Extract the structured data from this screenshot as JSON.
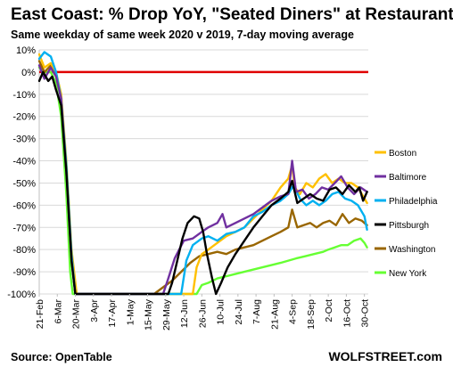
{
  "chart_data": {
    "type": "line",
    "title": "East Coast: % Drop YoY, \"Seated Diners\" at Restaurants",
    "subtitle": "Same weekday of same week 2020 v 2019, 7-day moving average",
    "xlabel": "",
    "ylabel": "",
    "x_ticks": [
      "21-Feb",
      "6-Mar",
      "20-Mar",
      "3-Apr",
      "17-Apr",
      "1-May",
      "15-May",
      "29-May",
      "12-Jun",
      "26-Jun",
      "10-Jul",
      "24-Jul",
      "7-Aug",
      "21-Aug",
      "4-Sep",
      "18-Sep",
      "2-Oct",
      "16-Oct",
      "30-Oct"
    ],
    "x_range": [
      "2020-02-21",
      "2020-11-02"
    ],
    "ylim": [
      -100,
      10
    ],
    "y_ticks": [
      10,
      0,
      -10,
      -20,
      -30,
      -40,
      -50,
      -60,
      -70,
      -80,
      -90,
      -100
    ],
    "y_tick_format": "percent",
    "grid": true,
    "zero_line_color": "#e00000",
    "legend_position": "right",
    "series": [
      {
        "name": "Boston",
        "color": "#ffc000",
        "points": [
          [
            "2020-02-21",
            8
          ],
          [
            "2020-02-25",
            2
          ],
          [
            "2020-03-01",
            4
          ],
          [
            "2020-03-05",
            0
          ],
          [
            "2020-03-09",
            -10
          ],
          [
            "2020-03-13",
            -40
          ],
          [
            "2020-03-17",
            -80
          ],
          [
            "2020-03-21",
            -100
          ],
          [
            "2020-06-19",
            -100
          ],
          [
            "2020-06-22",
            -88
          ],
          [
            "2020-06-26",
            -82
          ],
          [
            "2020-07-01",
            -80
          ],
          [
            "2020-07-08",
            -77
          ],
          [
            "2020-07-15",
            -74
          ],
          [
            "2020-07-22",
            -72
          ],
          [
            "2020-07-29",
            -70
          ],
          [
            "2020-08-05",
            -66
          ],
          [
            "2020-08-12",
            -62
          ],
          [
            "2020-08-19",
            -58
          ],
          [
            "2020-08-26",
            -52
          ],
          [
            "2020-09-01",
            -48
          ],
          [
            "2020-09-04",
            -42
          ],
          [
            "2020-09-06",
            -52
          ],
          [
            "2020-09-10",
            -55
          ],
          [
            "2020-09-15",
            -50
          ],
          [
            "2020-09-20",
            -52
          ],
          [
            "2020-09-25",
            -48
          ],
          [
            "2020-09-30",
            -46
          ],
          [
            "2020-10-05",
            -50
          ],
          [
            "2020-10-10",
            -48
          ],
          [
            "2020-10-15",
            -50
          ],
          [
            "2020-10-20",
            -50
          ],
          [
            "2020-10-25",
            -52
          ],
          [
            "2020-10-30",
            -57
          ],
          [
            "2020-11-01",
            -59
          ]
        ]
      },
      {
        "name": "Baltimore",
        "color": "#7030a0",
        "points": [
          [
            "2020-02-21",
            3
          ],
          [
            "2020-02-25",
            -3
          ],
          [
            "2020-03-01",
            2
          ],
          [
            "2020-03-05",
            -2
          ],
          [
            "2020-03-09",
            -12
          ],
          [
            "2020-03-13",
            -45
          ],
          [
            "2020-03-17",
            -85
          ],
          [
            "2020-03-20",
            -100
          ],
          [
            "2020-05-27",
            -100
          ],
          [
            "2020-05-31",
            -93
          ],
          [
            "2020-06-05",
            -84
          ],
          [
            "2020-06-12",
            -76
          ],
          [
            "2020-06-19",
            -75
          ],
          [
            "2020-06-26",
            -72
          ],
          [
            "2020-07-01",
            -70
          ],
          [
            "2020-07-08",
            -68
          ],
          [
            "2020-07-12",
            -64
          ],
          [
            "2020-07-15",
            -70
          ],
          [
            "2020-07-22",
            -68
          ],
          [
            "2020-07-29",
            -66
          ],
          [
            "2020-08-05",
            -64
          ],
          [
            "2020-08-12",
            -61
          ],
          [
            "2020-08-19",
            -58
          ],
          [
            "2020-08-26",
            -56
          ],
          [
            "2020-09-01",
            -55
          ],
          [
            "2020-09-04",
            -40
          ],
          [
            "2020-09-07",
            -54
          ],
          [
            "2020-09-12",
            -53
          ],
          [
            "2020-09-17",
            -57
          ],
          [
            "2020-09-22",
            -55
          ],
          [
            "2020-09-27",
            -52
          ],
          [
            "2020-10-02",
            -53
          ],
          [
            "2020-10-07",
            -50
          ],
          [
            "2020-10-12",
            -47
          ],
          [
            "2020-10-17",
            -52
          ],
          [
            "2020-10-22",
            -55
          ],
          [
            "2020-10-27",
            -52
          ],
          [
            "2020-11-01",
            -54
          ]
        ]
      },
      {
        "name": "Philadelphia",
        "color": "#00b0f0",
        "points": [
          [
            "2020-02-21",
            6
          ],
          [
            "2020-02-25",
            9
          ],
          [
            "2020-03-01",
            7
          ],
          [
            "2020-03-05",
            0
          ],
          [
            "2020-03-09",
            -12
          ],
          [
            "2020-03-13",
            -42
          ],
          [
            "2020-03-17",
            -82
          ],
          [
            "2020-03-20",
            -100
          ],
          [
            "2020-06-10",
            -100
          ],
          [
            "2020-06-14",
            -85
          ],
          [
            "2020-06-19",
            -78
          ],
          [
            "2020-06-26",
            -75
          ],
          [
            "2020-07-01",
            -74
          ],
          [
            "2020-07-08",
            -76
          ],
          [
            "2020-07-15",
            -73
          ],
          [
            "2020-07-22",
            -72
          ],
          [
            "2020-07-29",
            -70
          ],
          [
            "2020-08-05",
            -65
          ],
          [
            "2020-08-12",
            -63
          ],
          [
            "2020-08-19",
            -60
          ],
          [
            "2020-08-26",
            -58
          ],
          [
            "2020-09-01",
            -55
          ],
          [
            "2020-09-05",
            -51
          ],
          [
            "2020-09-10",
            -57
          ],
          [
            "2020-09-15",
            -60
          ],
          [
            "2020-09-20",
            -58
          ],
          [
            "2020-09-25",
            -60
          ],
          [
            "2020-09-30",
            -58
          ],
          [
            "2020-10-05",
            -55
          ],
          [
            "2020-10-10",
            -54
          ],
          [
            "2020-10-15",
            -57
          ],
          [
            "2020-10-20",
            -58
          ],
          [
            "2020-10-25",
            -60
          ],
          [
            "2020-10-30",
            -65
          ],
          [
            "2020-11-01",
            -71
          ]
        ]
      },
      {
        "name": "Pittsburgh",
        "color": "#000000",
        "points": [
          [
            "2020-02-21",
            -4
          ],
          [
            "2020-02-24",
            0
          ],
          [
            "2020-02-28",
            -4
          ],
          [
            "2020-03-02",
            -2
          ],
          [
            "2020-03-05",
            -8
          ],
          [
            "2020-03-09",
            -15
          ],
          [
            "2020-03-13",
            -45
          ],
          [
            "2020-03-17",
            -85
          ],
          [
            "2020-03-20",
            -100
          ],
          [
            "2020-05-31",
            -100
          ],
          [
            "2020-06-03",
            -95
          ],
          [
            "2020-06-07",
            -85
          ],
          [
            "2020-06-11",
            -75
          ],
          [
            "2020-06-15",
            -68
          ],
          [
            "2020-06-20",
            -65
          ],
          [
            "2020-06-24",
            -66
          ],
          [
            "2020-06-27",
            -72
          ],
          [
            "2020-06-30",
            -82
          ],
          [
            "2020-07-04",
            -93
          ],
          [
            "2020-07-07",
            -100
          ],
          [
            "2020-07-11",
            -95
          ],
          [
            "2020-07-16",
            -88
          ],
          [
            "2020-07-22",
            -82
          ],
          [
            "2020-07-29",
            -76
          ],
          [
            "2020-08-05",
            -70
          ],
          [
            "2020-08-12",
            -65
          ],
          [
            "2020-08-19",
            -60
          ],
          [
            "2020-08-26",
            -57
          ],
          [
            "2020-09-01",
            -54
          ],
          [
            "2020-09-04",
            -49
          ],
          [
            "2020-09-08",
            -59
          ],
          [
            "2020-09-13",
            -57
          ],
          [
            "2020-09-18",
            -55
          ],
          [
            "2020-09-23",
            -57
          ],
          [
            "2020-09-28",
            -58
          ],
          [
            "2020-10-03",
            -53
          ],
          [
            "2020-10-08",
            -52
          ],
          [
            "2020-10-13",
            -55
          ],
          [
            "2020-10-18",
            -51
          ],
          [
            "2020-10-23",
            -54
          ],
          [
            "2020-10-26",
            -52
          ],
          [
            "2020-10-29",
            -58
          ],
          [
            "2020-11-01",
            -54
          ]
        ]
      },
      {
        "name": "Washington",
        "color": "#996600",
        "points": [
          [
            "2020-02-21",
            5
          ],
          [
            "2020-02-25",
            0
          ],
          [
            "2020-03-01",
            3
          ],
          [
            "2020-03-05",
            -1
          ],
          [
            "2020-03-09",
            -12
          ],
          [
            "2020-03-13",
            -43
          ],
          [
            "2020-03-17",
            -83
          ],
          [
            "2020-03-20",
            -100
          ],
          [
            "2020-05-20",
            -100
          ],
          [
            "2020-05-27",
            -97
          ],
          [
            "2020-06-03",
            -94
          ],
          [
            "2020-06-10",
            -90
          ],
          [
            "2020-06-17",
            -86
          ],
          [
            "2020-06-24",
            -83
          ],
          [
            "2020-07-01",
            -82
          ],
          [
            "2020-07-08",
            -81
          ],
          [
            "2020-07-15",
            -82
          ],
          [
            "2020-07-22",
            -80
          ],
          [
            "2020-07-29",
            -79
          ],
          [
            "2020-08-05",
            -78
          ],
          [
            "2020-08-12",
            -76
          ],
          [
            "2020-08-19",
            -74
          ],
          [
            "2020-08-26",
            -72
          ],
          [
            "2020-09-01",
            -70
          ],
          [
            "2020-09-04",
            -62
          ],
          [
            "2020-09-08",
            -70
          ],
          [
            "2020-09-13",
            -69
          ],
          [
            "2020-09-18",
            -68
          ],
          [
            "2020-09-23",
            -70
          ],
          [
            "2020-09-28",
            -68
          ],
          [
            "2020-10-03",
            -67
          ],
          [
            "2020-10-08",
            -69
          ],
          [
            "2020-10-13",
            -64
          ],
          [
            "2020-10-18",
            -68
          ],
          [
            "2020-10-23",
            -66
          ],
          [
            "2020-10-28",
            -67
          ],
          [
            "2020-11-01",
            -69
          ]
        ]
      },
      {
        "name": "New York",
        "color": "#66ff33",
        "points": [
          [
            "2020-02-21",
            2
          ],
          [
            "2020-02-25",
            0
          ],
          [
            "2020-03-01",
            0
          ],
          [
            "2020-03-05",
            -5
          ],
          [
            "2020-03-09",
            -20
          ],
          [
            "2020-03-13",
            -55
          ],
          [
            "2020-03-16",
            -90
          ],
          [
            "2020-03-18",
            -100
          ],
          [
            "2020-06-22",
            -100
          ],
          [
            "2020-06-26",
            -96
          ],
          [
            "2020-07-01",
            -95
          ],
          [
            "2020-07-08",
            -93
          ],
          [
            "2020-07-15",
            -92
          ],
          [
            "2020-07-22",
            -91
          ],
          [
            "2020-07-29",
            -90
          ],
          [
            "2020-08-05",
            -89
          ],
          [
            "2020-08-12",
            -88
          ],
          [
            "2020-08-19",
            -87
          ],
          [
            "2020-08-26",
            -86
          ],
          [
            "2020-09-01",
            -85
          ],
          [
            "2020-09-07",
            -84
          ],
          [
            "2020-09-14",
            -83
          ],
          [
            "2020-09-21",
            -82
          ],
          [
            "2020-09-28",
            -81
          ],
          [
            "2020-10-02",
            -80
          ],
          [
            "2020-10-07",
            -79
          ],
          [
            "2020-10-12",
            -78
          ],
          [
            "2020-10-17",
            -78
          ],
          [
            "2020-10-22",
            -76
          ],
          [
            "2020-10-27",
            -75
          ],
          [
            "2020-10-30",
            -77
          ],
          [
            "2020-11-01",
            -79
          ]
        ]
      }
    ]
  },
  "footer": {
    "source": "Source: OpenTable",
    "brand": "WOLFSTREET.com"
  }
}
